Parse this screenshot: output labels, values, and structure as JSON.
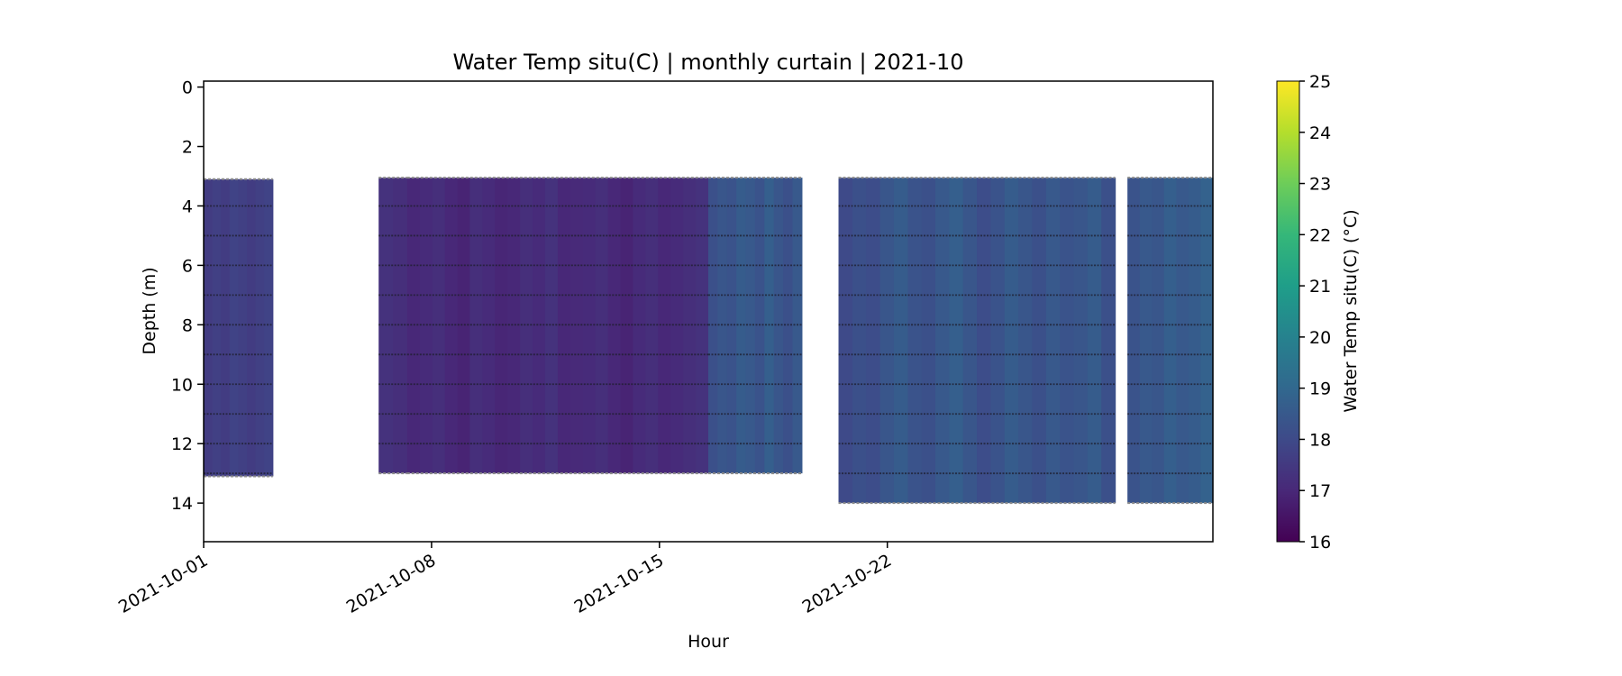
{
  "chart_data": {
    "type": "heatmap",
    "title": "Water Temp situ(C) | monthly curtain | 2021-10",
    "xlabel": "Hour",
    "ylabel": "Depth (m)",
    "x_range": [
      "2021-10-01",
      "2021-11-01"
    ],
    "x_ticks": [
      "2021-10-01",
      "2021-10-08",
      "2021-10-15",
      "2021-10-22"
    ],
    "ylim": [
      15.3,
      -0.2
    ],
    "y_inverted": true,
    "y_ticks": [
      0,
      2,
      4,
      6,
      8,
      10,
      12,
      14
    ],
    "grid": false,
    "colormap": "viridis",
    "colorbar": {
      "label": "Water Temp situ(C) (°C)",
      "min": 16,
      "max": 25,
      "ticks": [
        16,
        17,
        18,
        19,
        20,
        21,
        22,
        23,
        24,
        25
      ]
    },
    "sensor_depths": [
      4,
      5,
      6,
      7,
      8,
      9,
      10,
      11,
      12,
      13
    ],
    "segments": [
      {
        "start": "2021-10-01",
        "end": "2021-10-03T03:00",
        "top_depth": 3.1,
        "bottom_depth": 13.1,
        "temps": [
          17.6,
          17.7,
          17.6,
          17.8,
          17.7,
          17.6,
          17.7,
          17.8
        ]
      },
      {
        "start": "2021-10-06T09:00",
        "end": "2021-10-07T06:00",
        "top_depth": 3.05,
        "bottom_depth": 13.0,
        "temps": [
          17.3,
          17.2
        ]
      },
      {
        "start": "2021-10-07T06:00",
        "end": "2021-10-16T12:00",
        "top_depth": 3.05,
        "bottom_depth": 13.0,
        "temps": [
          17.0,
          17.1,
          17.2,
          17.0,
          16.9,
          17.2,
          17.1,
          16.95,
          17.0,
          17.2,
          17.1,
          17.3,
          17.0,
          17.05,
          17.1,
          17.2,
          17.0,
          16.9,
          17.1,
          17.2,
          17.0,
          17.1,
          17.2,
          17.3
        ]
      },
      {
        "start": "2021-10-16T12:00",
        "end": "2021-10-19T09:00",
        "top_depth": 3.05,
        "bottom_depth": 13.0,
        "temps": [
          18.2,
          18.4,
          18.3,
          18.6,
          18.5,
          18.3,
          18.7,
          18.4,
          18.2,
          18.5
        ]
      },
      {
        "start": "2021-10-20T12:00",
        "end": "2021-10-29T00:00",
        "top_depth": 3.05,
        "bottom_depth": 14.0,
        "temps": [
          18.0,
          18.2,
          18.1,
          18.4,
          18.6,
          18.3,
          18.2,
          18.5,
          18.7,
          18.4,
          18.1,
          18.3,
          18.6,
          18.4,
          18.2,
          18.5,
          18.3,
          18.4,
          18.6,
          18.2
        ]
      },
      {
        "start": "2021-10-29T09:00",
        "end": "2021-11-01",
        "top_depth": 3.05,
        "bottom_depth": 14.0,
        "temps": [
          18.3,
          18.5,
          18.4,
          18.7,
          18.5,
          18.6,
          18.8
        ]
      }
    ]
  }
}
